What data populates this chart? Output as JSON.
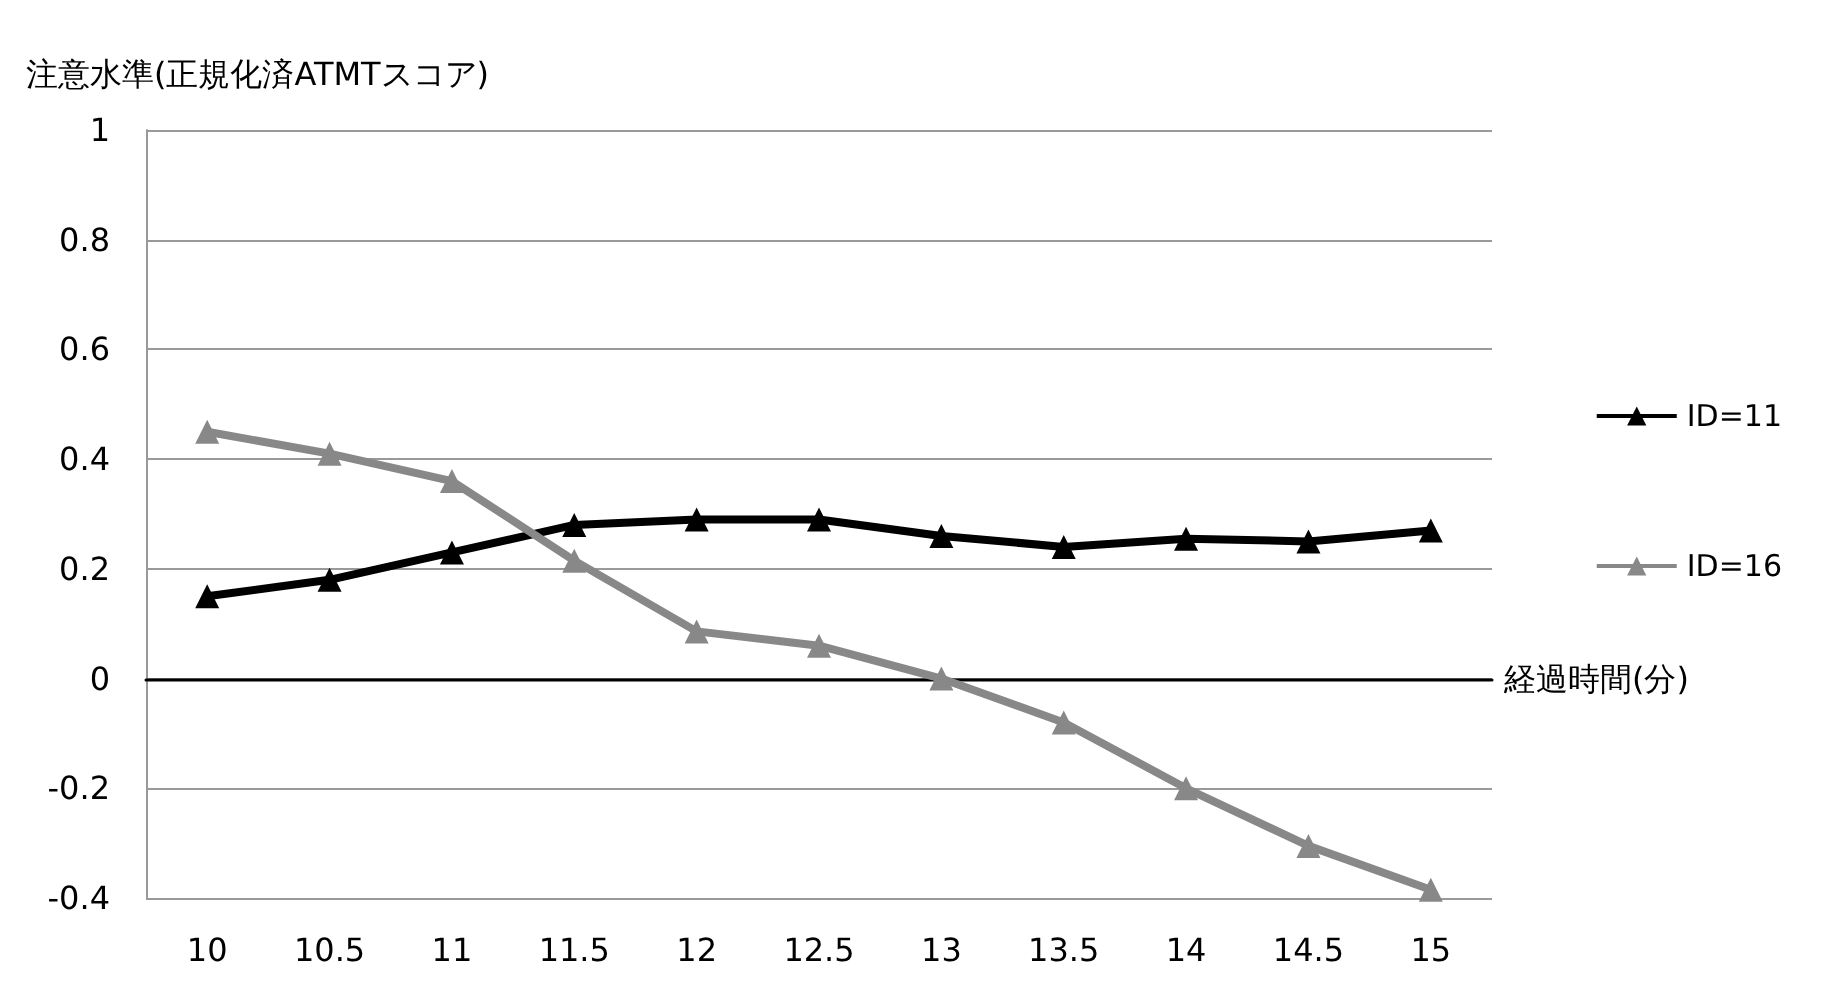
{
  "chart_data": {
    "type": "line",
    "ylabel": "注意水準(正規化済ATMTスコア)",
    "xlabel": "経過時間(分)",
    "categories": [
      "10",
      "10.5",
      "11",
      "11.5",
      "12",
      "12.5",
      "13",
      "13.5",
      "14",
      "14.5",
      "15"
    ],
    "series": [
      {
        "name": "ID=11",
        "color": "#000000",
        "values": [
          0.15,
          0.18,
          0.23,
          0.28,
          0.29,
          0.29,
          0.26,
          0.24,
          0.255,
          0.25,
          0.27
        ]
      },
      {
        "name": "ID=16",
        "color": "#888888",
        "values": [
          0.45,
          0.41,
          0.36,
          0.215,
          0.086,
          0.06,
          0.0,
          -0.08,
          -0.2,
          -0.305,
          -0.385
        ]
      }
    ],
    "ylim": [
      -0.4,
      1
    ],
    "yticks": [
      -0.4,
      -0.2,
      0,
      0.2,
      0.4,
      0.6,
      0.8,
      1
    ],
    "grid": "y",
    "legend": "right",
    "marker": "triangle",
    "line_style": "solid"
  }
}
